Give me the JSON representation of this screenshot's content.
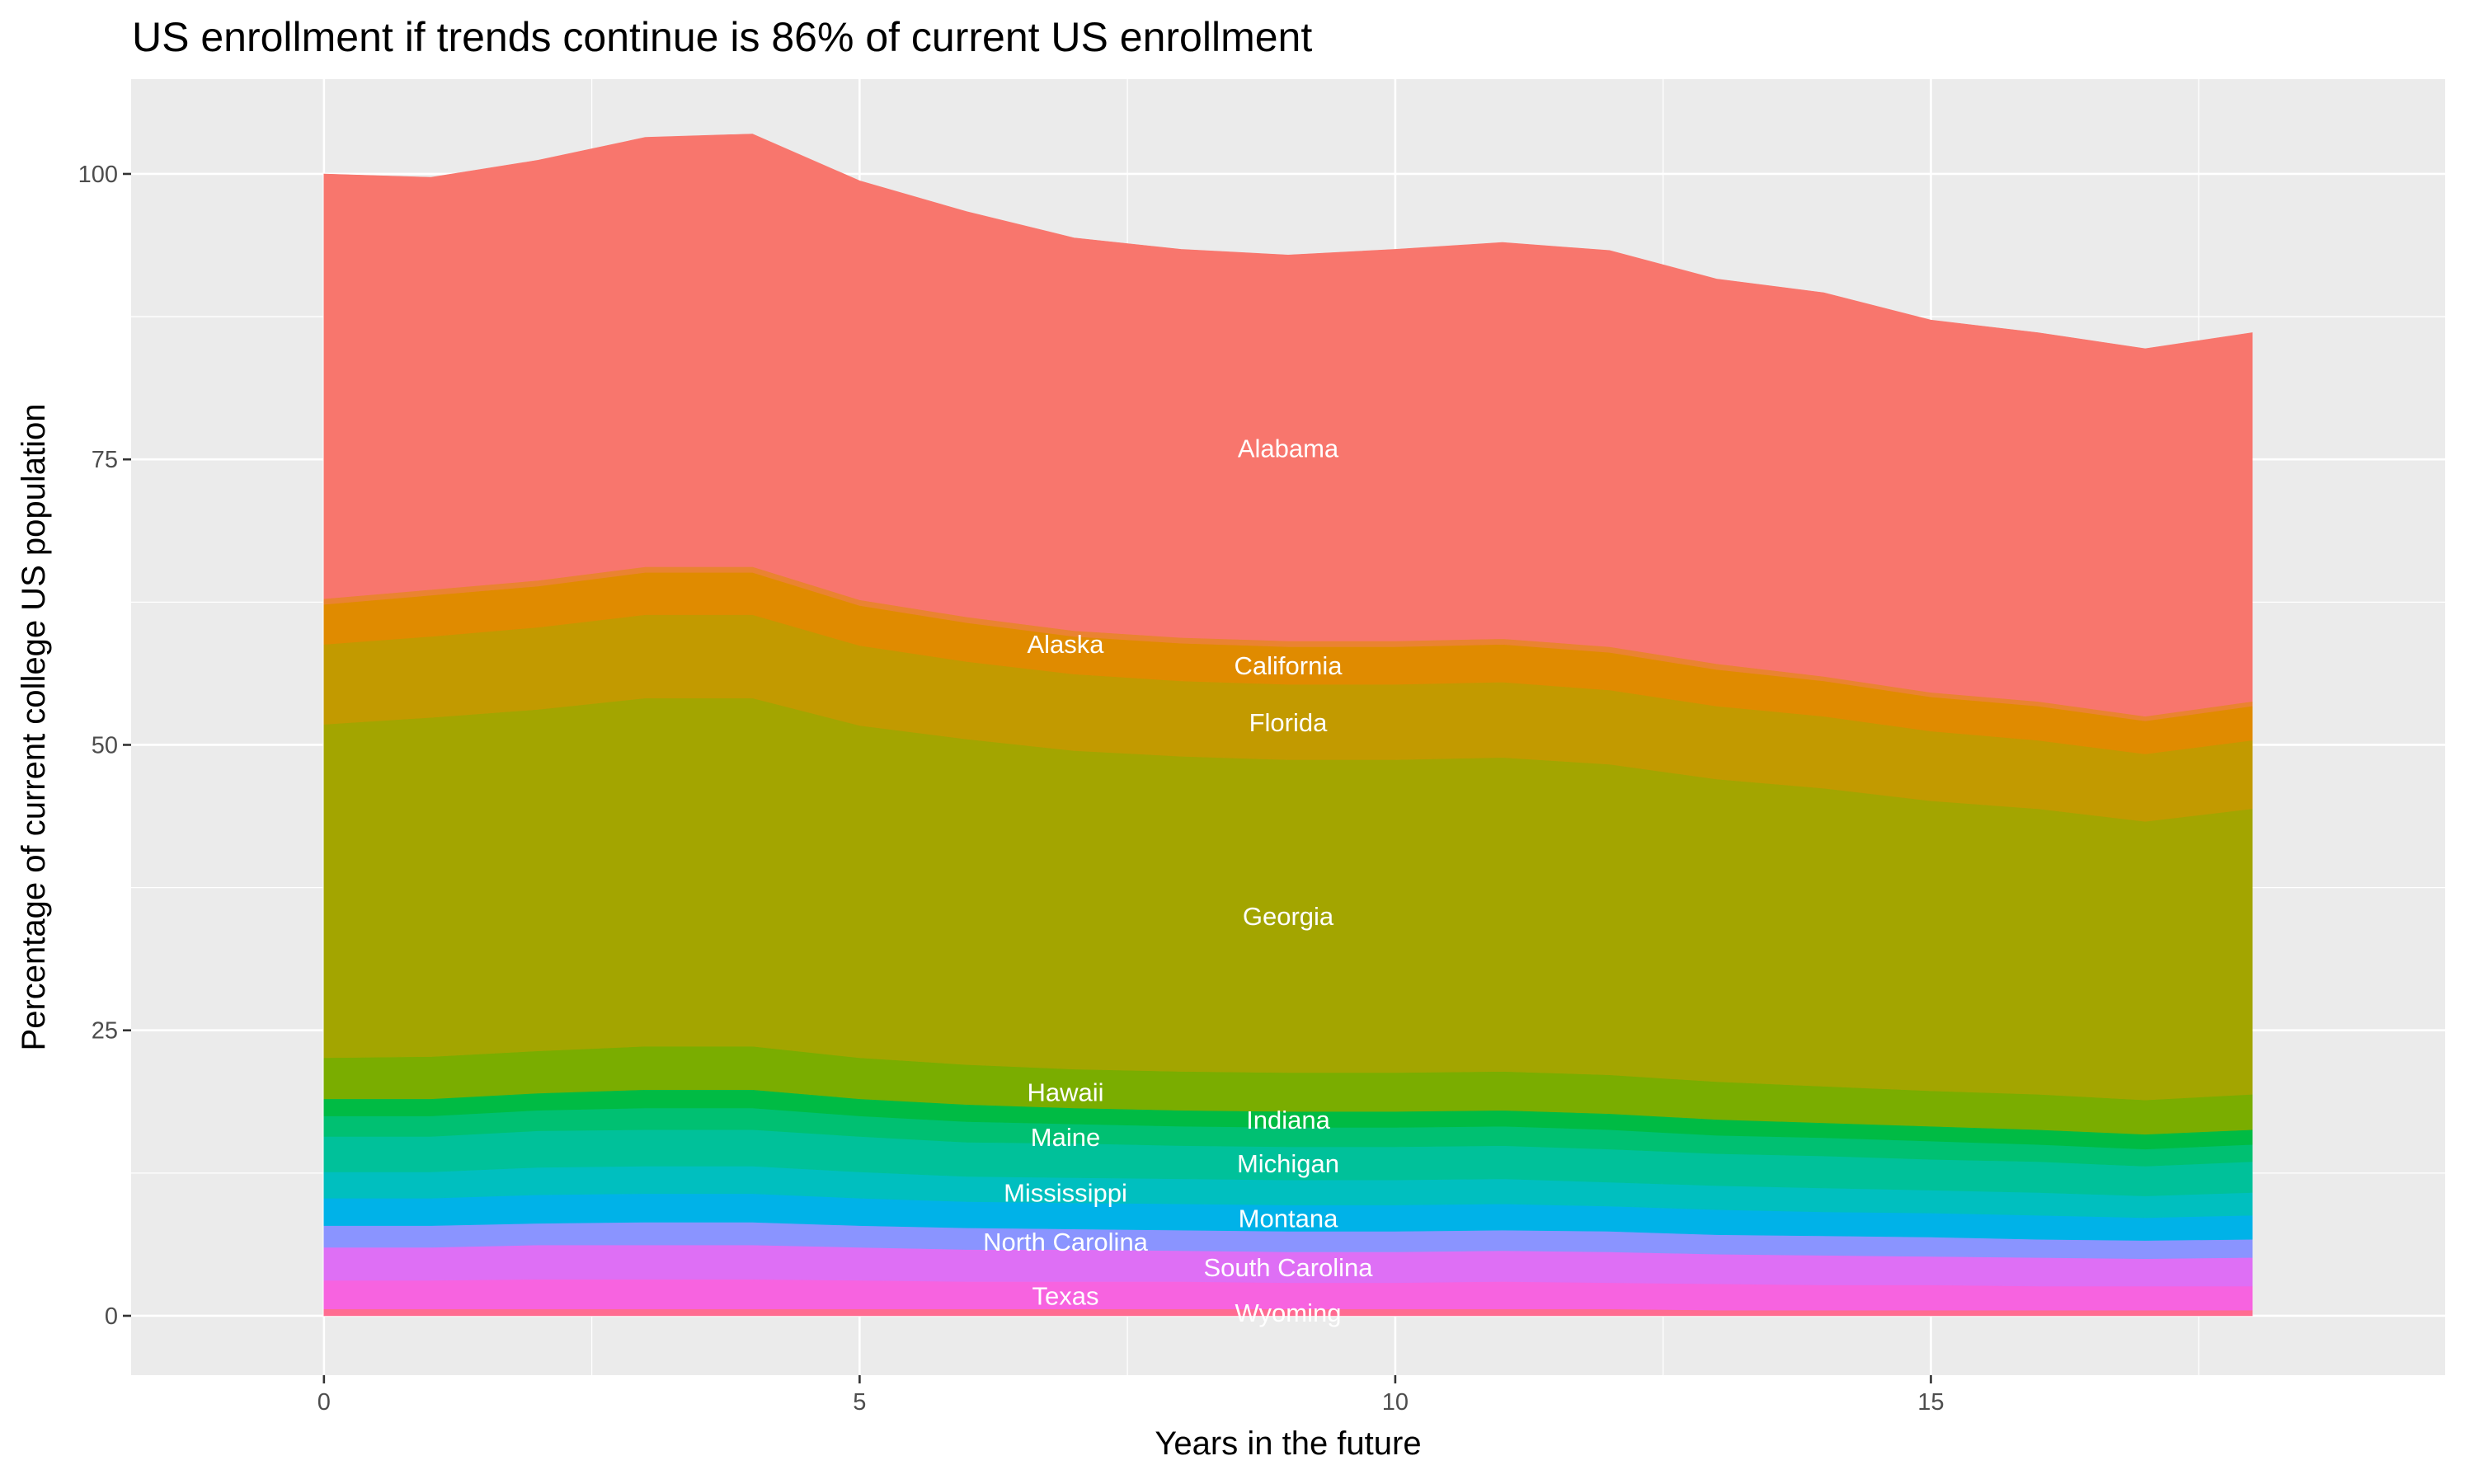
{
  "chart_data": {
    "type": "area",
    "stacked": true,
    "title": "US enrollment if trends continue is 86% of current US enrollment",
    "xlabel": "Years in the future",
    "ylabel": "Percentage of current college US population",
    "xlim": [
      -1.8,
      19.8
    ],
    "ylim": [
      -5.2,
      108.3
    ],
    "x_ticks": [
      0,
      5,
      10,
      15
    ],
    "y_ticks": [
      0,
      25,
      50,
      75,
      100
    ],
    "grid": true,
    "legend": "none",
    "label_x": 9,
    "x": [
      0,
      1,
      2,
      3,
      4,
      5,
      6,
      7,
      8,
      9,
      10,
      11,
      12,
      13,
      14,
      15,
      16,
      17,
      18
    ],
    "series": [
      {
        "name": "Wyoming",
        "color": "#FF6C91",
        "values": [
          0.6,
          0.6,
          0.6,
          0.6,
          0.6,
          0.6,
          0.6,
          0.6,
          0.6,
          0.6,
          0.6,
          0.6,
          0.6,
          0.5,
          0.5,
          0.5,
          0.5,
          0.5,
          0.5
        ]
      },
      {
        "name": "Texas",
        "color": "#F763E0",
        "values": [
          2.5,
          2.5,
          2.6,
          2.6,
          2.6,
          2.5,
          2.4,
          2.4,
          2.4,
          2.3,
          2.3,
          2.4,
          2.3,
          2.3,
          2.2,
          2.2,
          2.1,
          2.1,
          2.1
        ]
      },
      {
        "name": "South Carolina",
        "color": "#DE6FF5",
        "values": [
          2.9,
          2.9,
          3.0,
          3.0,
          3.0,
          2.9,
          2.8,
          2.8,
          2.7,
          2.7,
          2.7,
          2.7,
          2.7,
          2.6,
          2.6,
          2.5,
          2.5,
          2.4,
          2.5
        ]
      },
      {
        "name": "North Carolina",
        "color": "#8A94FF",
        "values": [
          1.9,
          1.9,
          1.9,
          2.0,
          2.0,
          1.9,
          1.9,
          1.8,
          1.8,
          1.8,
          1.8,
          1.8,
          1.8,
          1.7,
          1.7,
          1.7,
          1.6,
          1.6,
          1.6
        ]
      },
      {
        "name": "Montana",
        "color": "#00B2E8",
        "values": [
          2.4,
          2.4,
          2.5,
          2.5,
          2.5,
          2.4,
          2.3,
          2.3,
          2.3,
          2.3,
          2.3,
          2.3,
          2.2,
          2.2,
          2.1,
          2.1,
          2.1,
          2.0,
          2.1
        ]
      },
      {
        "name": "Mississippi",
        "color": "#00BFBF",
        "values": [
          2.3,
          2.3,
          2.4,
          2.4,
          2.4,
          2.3,
          2.2,
          2.2,
          2.2,
          2.2,
          2.2,
          2.2,
          2.1,
          2.1,
          2.1,
          2.0,
          2.0,
          1.9,
          2.0
        ]
      },
      {
        "name": "Michigan",
        "color": "#00C19A",
        "values": [
          3.1,
          3.1,
          3.2,
          3.2,
          3.2,
          3.1,
          3.0,
          3.0,
          2.9,
          2.9,
          2.9,
          2.9,
          2.9,
          2.8,
          2.8,
          2.7,
          2.7,
          2.6,
          2.7
        ]
      },
      {
        "name": "Maine",
        "color": "#00C072",
        "values": [
          1.8,
          1.8,
          1.8,
          1.9,
          1.9,
          1.8,
          1.8,
          1.7,
          1.7,
          1.7,
          1.7,
          1.7,
          1.7,
          1.6,
          1.6,
          1.6,
          1.5,
          1.5,
          1.5
        ]
      },
      {
        "name": "Indiana",
        "color": "#00BB44",
        "values": [
          1.5,
          1.5,
          1.5,
          1.6,
          1.6,
          1.5,
          1.5,
          1.4,
          1.4,
          1.4,
          1.4,
          1.4,
          1.4,
          1.4,
          1.3,
          1.3,
          1.3,
          1.3,
          1.3
        ]
      },
      {
        "name": "Hawaii",
        "color": "#7AAD00",
        "values": [
          3.6,
          3.7,
          3.7,
          3.8,
          3.8,
          3.6,
          3.5,
          3.4,
          3.4,
          3.4,
          3.4,
          3.4,
          3.4,
          3.3,
          3.2,
          3.1,
          3.1,
          3.0,
          3.1
        ]
      },
      {
        "name": "Georgia",
        "color": "#A3A500",
        "values": [
          29.2,
          29.7,
          29.9,
          30.5,
          30.5,
          29.1,
          28.5,
          27.9,
          27.6,
          27.4,
          27.4,
          27.5,
          27.2,
          26.5,
          26.1,
          25.4,
          25.0,
          24.4,
          25.0
        ]
      },
      {
        "name": "Florida",
        "color": "#C29A00",
        "values": [
          7.0,
          7.1,
          7.2,
          7.3,
          7.3,
          7.0,
          6.8,
          6.7,
          6.6,
          6.6,
          6.6,
          6.6,
          6.5,
          6.4,
          6.3,
          6.1,
          6.0,
          5.9,
          6.0
        ]
      },
      {
        "name": "California",
        "color": "#E08B00",
        "values": [
          3.5,
          3.6,
          3.6,
          3.7,
          3.7,
          3.5,
          3.4,
          3.3,
          3.3,
          3.3,
          3.3,
          3.3,
          3.3,
          3.2,
          3.1,
          3.0,
          3.0,
          2.9,
          3.0
        ]
      },
      {
        "name": "Alaska",
        "color": "#EA8331",
        "values": [
          0.5,
          0.5,
          0.5,
          0.5,
          0.5,
          0.5,
          0.5,
          0.5,
          0.5,
          0.5,
          0.5,
          0.5,
          0.5,
          0.5,
          0.4,
          0.4,
          0.4,
          0.4,
          0.4
        ]
      },
      {
        "name": "Alabama",
        "color": "#F8766D",
        "values": [
          37.2,
          36.1,
          36.8,
          37.6,
          37.9,
          36.7,
          35.5,
          34.4,
          34.0,
          33.8,
          34.3,
          34.7,
          34.7,
          33.7,
          33.6,
          32.6,
          32.3,
          32.2,
          32.3
        ]
      }
    ]
  }
}
